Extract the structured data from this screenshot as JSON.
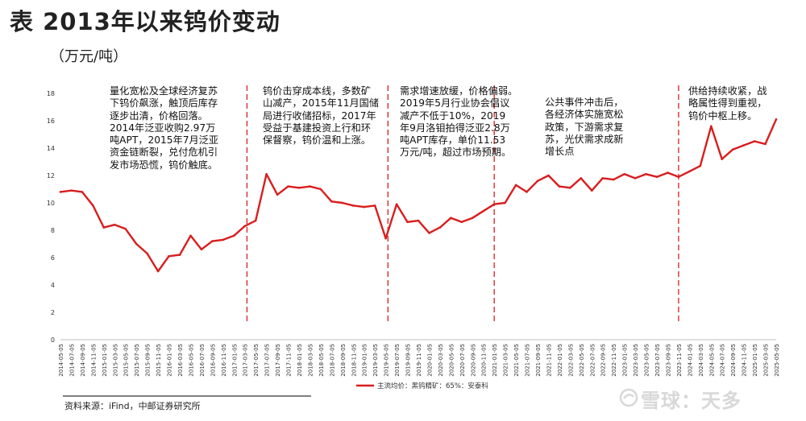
{
  "title": "表  2013年以来钨价变动",
  "unit": "（万元/吨）",
  "source": "资料来源：iFind，中邮证券研究所",
  "watermark": "雪球：天多",
  "annotations": [
    "量化宽松及全球经济复苏\n下钨价飙涨，触顶后库存\n逐步出清，价格回落。\n2014年泛亚收购2.97万\n吨APT，2015年7月泛亚\n资金链断裂，兑付危机引\n发市场恐慌，钨价触底。",
    "钨价击穿成本线，多数矿\n山减产，2015年11月国储\n局进行收储招标，2017年\n受益于基建投资上行和环\n保督察，钨价温和上涨。",
    "需求增速放缓，价格偏弱。\n2019年5月行业协会倡议\n减产不低于10%，2019\n年9月洛钼拍得泛亚2.8万\n吨APT库存，单价11.53\n万元/吨，超过市场预期。",
    "公共事件冲击后，\n各经济体实施宽松\n政策，下游需求复\n苏，光伏需求成新\n增长点",
    "供给持续收紧，战\n略属性得到重视，\n钨价中枢上移。"
  ],
  "chart_data": {
    "type": "line",
    "ylim": [
      0,
      18
    ],
    "yticks": [
      0,
      2,
      4,
      6,
      8,
      10,
      12,
      14,
      16,
      18
    ],
    "x_ticks": [
      "2014-05-05",
      "2014-07-05",
      "2014-09-05",
      "2014-11-05",
      "2015-01-05",
      "2015-03-05",
      "2015-05-05",
      "2015-07-05",
      "2015-09-05",
      "2015-11-05",
      "2016-01-05",
      "2016-03-05",
      "2016-05-05",
      "2016-07-05",
      "2016-09-05",
      "2016-11-05",
      "2017-01-05",
      "2017-03-05",
      "2017-05-05",
      "2017-07-05",
      "2017-09-05",
      "2017-11-05",
      "2018-01-05",
      "2018-03-05",
      "2018-05-05",
      "2018-07-05",
      "2018-09-05",
      "2018-11-05",
      "2019-01-05",
      "2019-03-05",
      "2019-05-05",
      "2019-07-05",
      "2019-09-05",
      "2019-11-05",
      "2020-01-05",
      "2020-03-05",
      "2020-05-05",
      "2020-07-05",
      "2020-09-05",
      "2020-11-05",
      "2021-01-05",
      "2021-03-05",
      "2021-05-05",
      "2021-07-05",
      "2021-09-05",
      "2021-11-05",
      "2022-01-05",
      "2022-03-05",
      "2022-05-05",
      "2022-07-05",
      "2022-09-05",
      "2022-11-05",
      "2023-01-05",
      "2023-03-05",
      "2023-05-05",
      "2023-07-05",
      "2023-09-05",
      "2023-11-05",
      "2024-01-05",
      "2024-03-05",
      "2024-05-05",
      "2024-07-05",
      "2024-09-05",
      "2024-11-05",
      "2025-01-05",
      "2025-03-05",
      "2025-05-05"
    ],
    "series": [
      {
        "name": "主流均价：黑钨精矿：65%：安泰科",
        "color": "#d81e1e",
        "x": [
          0,
          1,
          2,
          3,
          4,
          5,
          6,
          7,
          8,
          9,
          10,
          11,
          12,
          13,
          14,
          15,
          16,
          17,
          18,
          19,
          20,
          21,
          22,
          23,
          24,
          25,
          26,
          27,
          28,
          29,
          30,
          31,
          32,
          33,
          34,
          35,
          36,
          37,
          38,
          39,
          40,
          41,
          42,
          43,
          44,
          45,
          46,
          47,
          48,
          49,
          50,
          51,
          52,
          53,
          54,
          55,
          56,
          57,
          58,
          59,
          60,
          61,
          62,
          63,
          64,
          65,
          66
        ],
        "values": [
          10.8,
          10.9,
          10.8,
          9.8,
          8.2,
          8.4,
          8.1,
          7.0,
          6.3,
          5.0,
          6.1,
          6.2,
          7.6,
          6.6,
          7.2,
          7.3,
          7.6,
          8.3,
          8.7,
          12.1,
          10.6,
          11.2,
          11.1,
          11.2,
          11.0,
          10.1,
          10.0,
          9.8,
          9.7,
          9.8,
          7.4,
          9.9,
          8.6,
          8.7,
          7.8,
          8.2,
          8.9,
          8.6,
          8.9,
          9.4,
          9.9,
          10.0,
          11.3,
          10.8,
          11.6,
          12.0,
          11.2,
          11.1,
          11.8,
          10.9,
          11.8,
          11.7,
          12.1,
          11.8,
          12.1,
          11.9,
          12.2,
          11.9,
          12.3,
          12.7,
          15.6,
          13.2,
          13.9,
          14.2,
          14.5,
          14.3,
          16.1
        ]
      }
    ],
    "vlines_x": [
      17.2,
      30.2,
      40.0,
      57.0
    ],
    "legend": "bottom-center"
  }
}
